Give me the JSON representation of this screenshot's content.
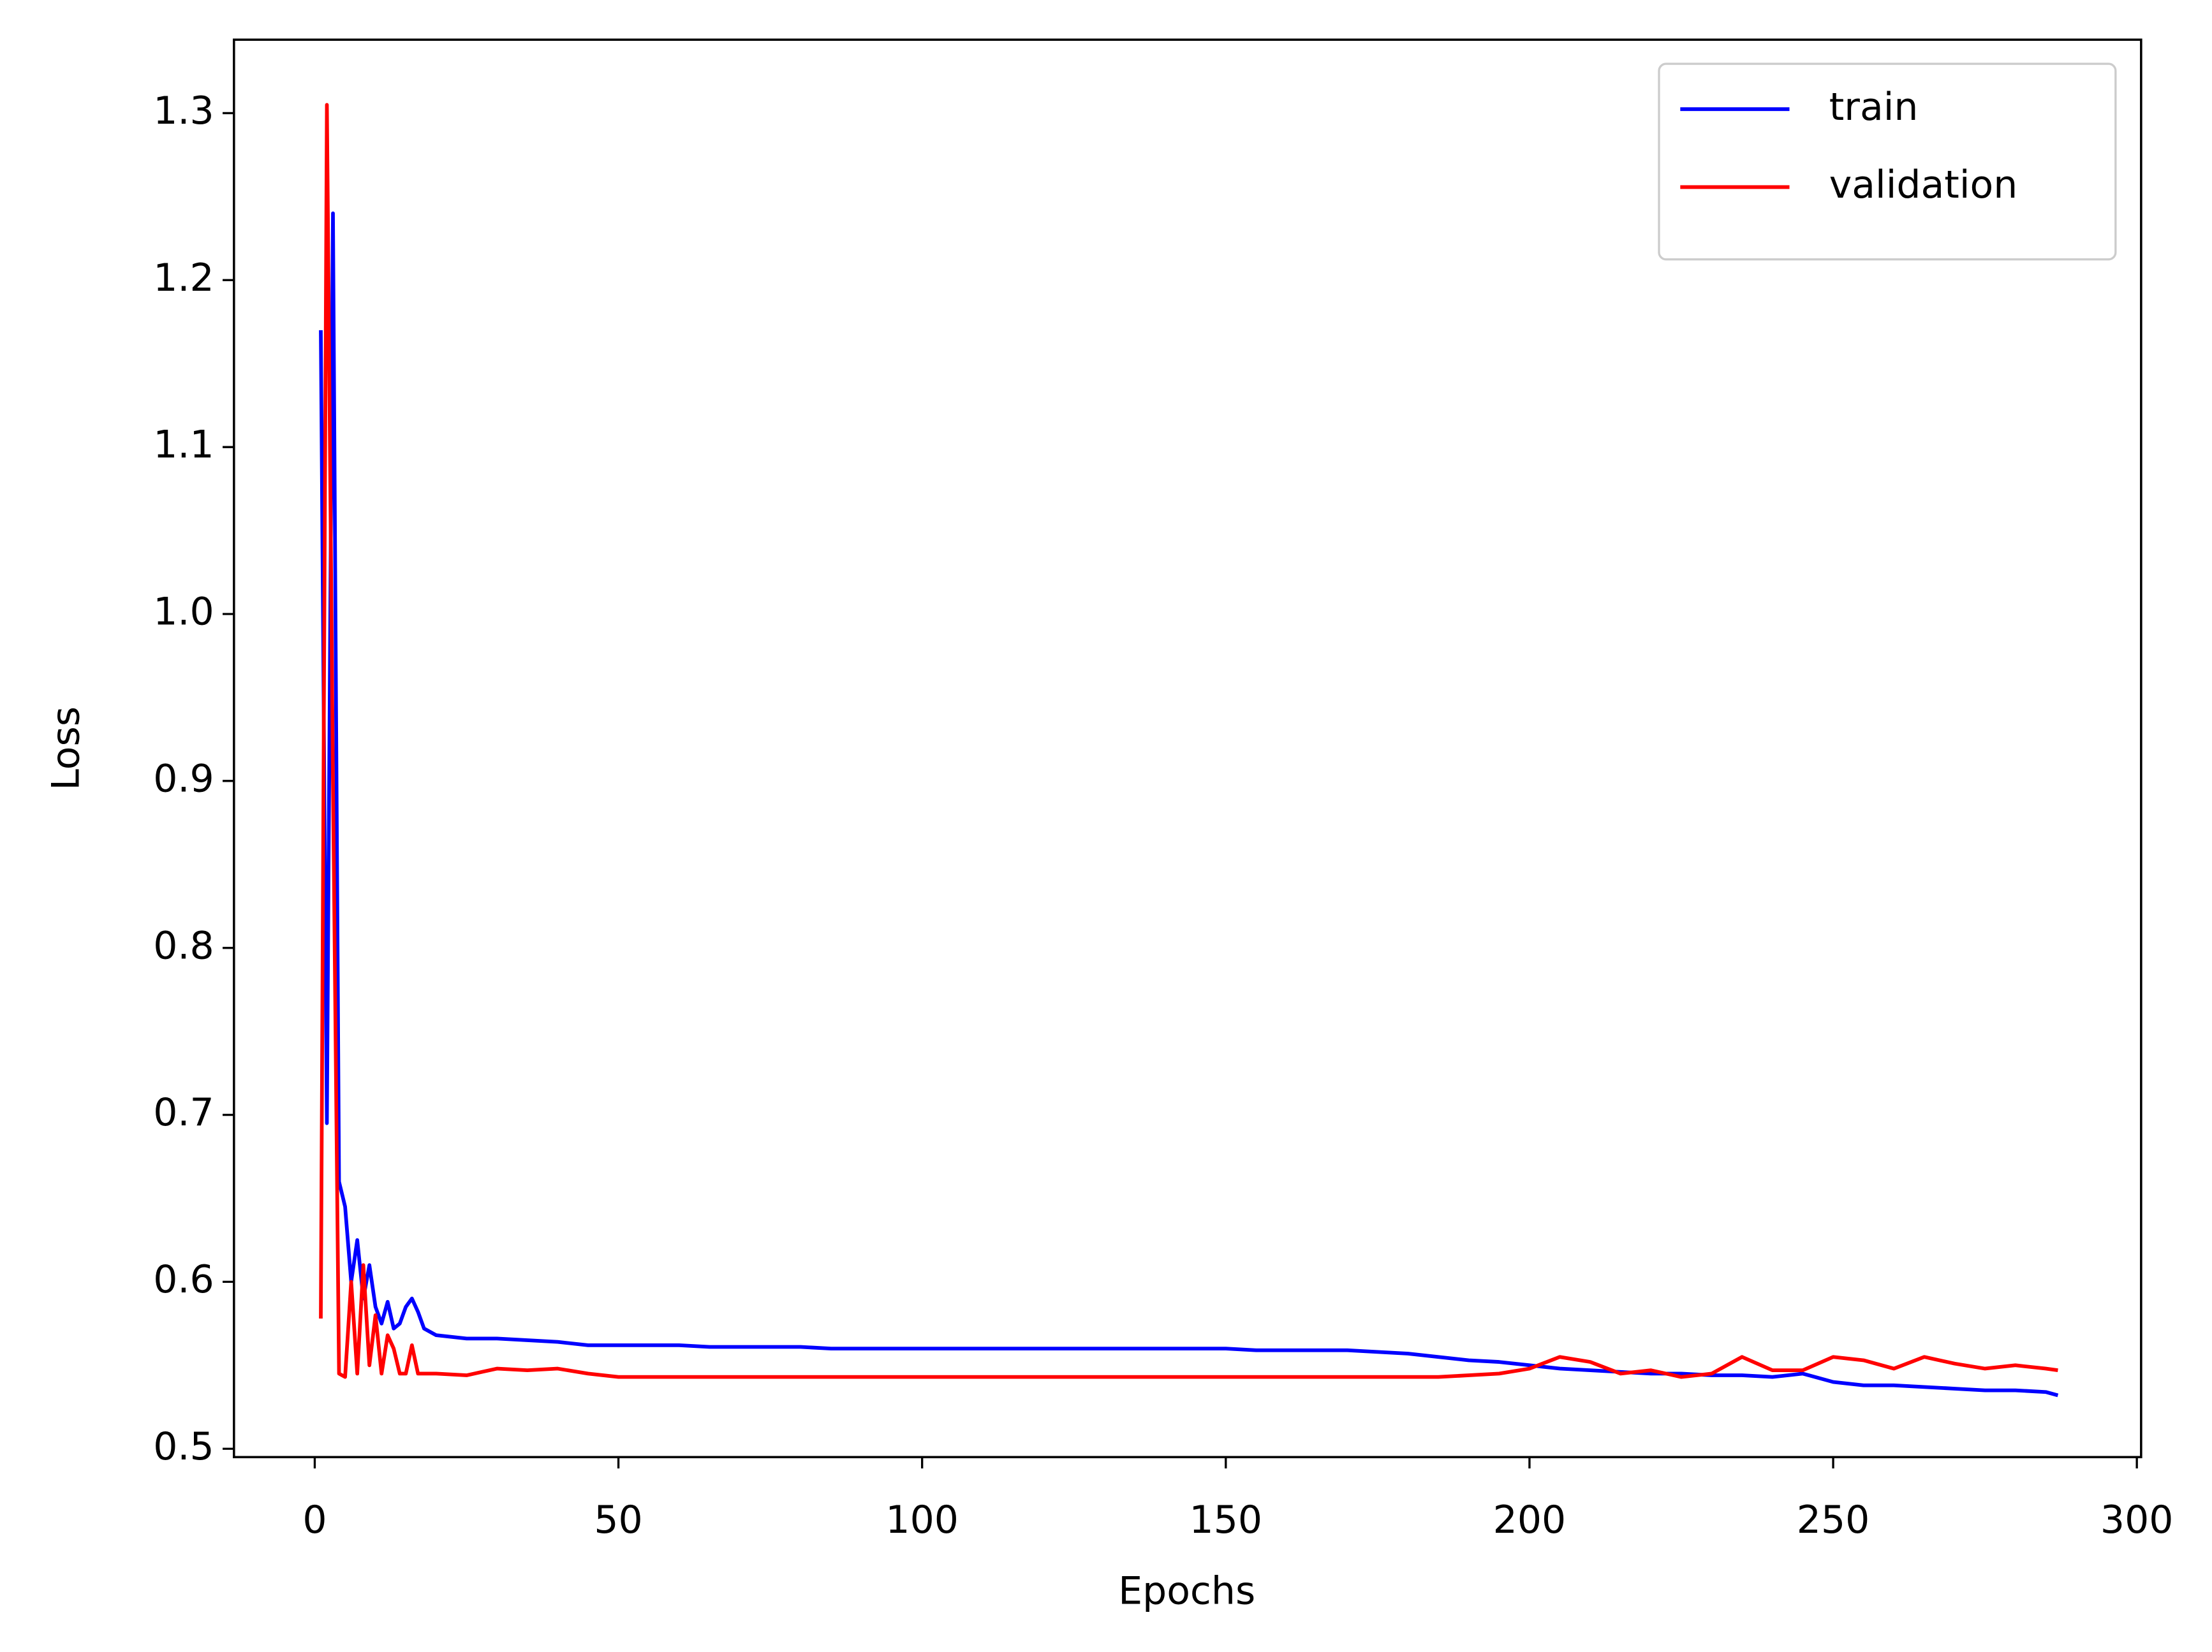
{
  "chart_data": {
    "type": "line",
    "xlabel": "Epochs",
    "ylabel": "Loss",
    "x": [
      1,
      2,
      3,
      4,
      5,
      6,
      7,
      8,
      9,
      10,
      11,
      12,
      13,
      14,
      15,
      16,
      17,
      18,
      19,
      20,
      25,
      30,
      35,
      40,
      45,
      50,
      55,
      60,
      65,
      70,
      75,
      80,
      85,
      90,
      95,
      100,
      105,
      110,
      115,
      120,
      125,
      130,
      135,
      140,
      145,
      150,
      155,
      160,
      165,
      170,
      175,
      180,
      185,
      190,
      195,
      200,
      205,
      210,
      215,
      220,
      225,
      230,
      235,
      240,
      245,
      250,
      255,
      260,
      265,
      270,
      275,
      280,
      285,
      287
    ],
    "series": [
      {
        "name": "train",
        "color": "#0000ff",
        "values": [
          1.17,
          0.695,
          1.24,
          0.66,
          0.645,
          0.6,
          0.625,
          0.59,
          0.61,
          0.585,
          0.575,
          0.588,
          0.572,
          0.575,
          0.585,
          0.59,
          0.582,
          0.572,
          0.57,
          0.568,
          0.566,
          0.566,
          0.565,
          0.564,
          0.562,
          0.562,
          0.562,
          0.562,
          0.561,
          0.561,
          0.561,
          0.561,
          0.56,
          0.56,
          0.56,
          0.56,
          0.56,
          0.56,
          0.56,
          0.56,
          0.56,
          0.56,
          0.56,
          0.56,
          0.56,
          0.56,
          0.559,
          0.559,
          0.559,
          0.559,
          0.558,
          0.557,
          0.555,
          0.553,
          0.552,
          0.55,
          0.548,
          0.547,
          0.546,
          0.545,
          0.545,
          0.544,
          0.544,
          0.543,
          0.545,
          0.54,
          0.538,
          0.538,
          0.537,
          0.536,
          0.535,
          0.535,
          0.534,
          0.532
        ]
      },
      {
        "name": "validation",
        "color": "#ff0000",
        "values": [
          0.578,
          1.305,
          0.9,
          0.545,
          0.543,
          0.6,
          0.545,
          0.61,
          0.55,
          0.58,
          0.545,
          0.568,
          0.56,
          0.545,
          0.545,
          0.562,
          0.545,
          0.545,
          0.545,
          0.545,
          0.544,
          0.548,
          0.547,
          0.548,
          0.545,
          0.543,
          0.543,
          0.543,
          0.543,
          0.543,
          0.543,
          0.543,
          0.543,
          0.543,
          0.543,
          0.543,
          0.543,
          0.543,
          0.543,
          0.543,
          0.543,
          0.543,
          0.543,
          0.543,
          0.543,
          0.543,
          0.543,
          0.543,
          0.543,
          0.543,
          0.543,
          0.543,
          0.543,
          0.544,
          0.545,
          0.548,
          0.555,
          0.552,
          0.545,
          0.547,
          0.543,
          0.545,
          0.555,
          0.547,
          0.547,
          0.555,
          0.553,
          0.548,
          0.555,
          0.551,
          0.548,
          0.55,
          0.548,
          0.547
        ]
      }
    ],
    "xlim": [
      -13.3,
      300.7
    ],
    "ylim": [
      0.495,
      1.344
    ],
    "xticks": [
      0,
      50,
      100,
      150,
      200,
      250,
      300
    ],
    "yticks": [
      0.5,
      0.6,
      0.7,
      0.8,
      0.9,
      {
        "value": 1,
        "label": "1.0"
      },
      1.1,
      1.2,
      1.3
    ],
    "legend": "upper right",
    "grid": false
  }
}
